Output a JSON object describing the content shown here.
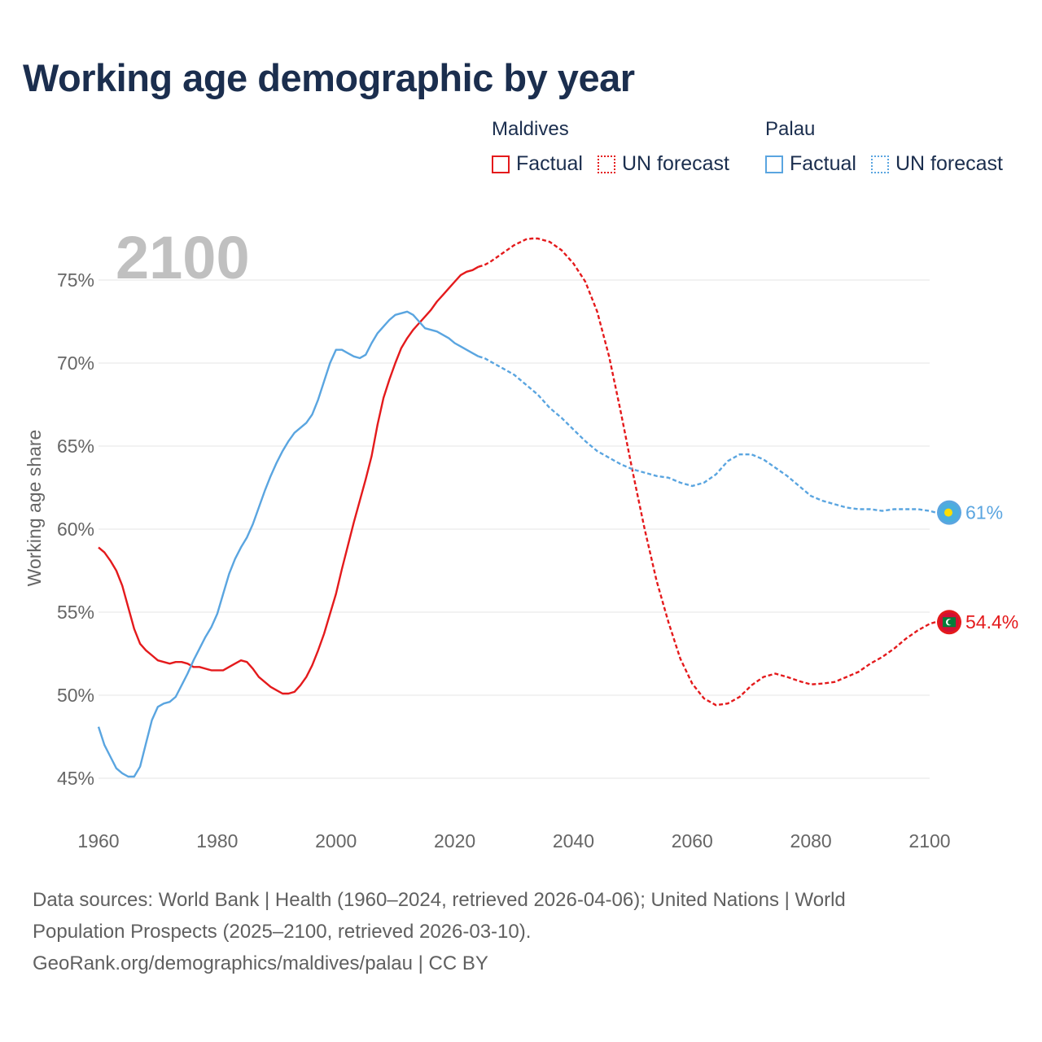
{
  "title": "Working age demographic by year",
  "legend": {
    "groups": [
      {
        "name": "Maldives",
        "factual_label": "Factual",
        "forecast_label": "UN forecast",
        "color": "#e41a1c"
      },
      {
        "name": "Palau",
        "factual_label": "Factual",
        "forecast_label": "UN forecast",
        "color": "#5aa5e0"
      }
    ]
  },
  "chart_data": {
    "type": "line",
    "title": "Working age demographic by year",
    "year_watermark": "2100",
    "xlabel": "",
    "ylabel": "Working age share",
    "xlim": [
      1960,
      2100
    ],
    "ylim": [
      43,
      78
    ],
    "x_ticks": [
      1960,
      1980,
      2000,
      2020,
      2040,
      2060,
      2080,
      2100
    ],
    "x_tick_labels": [
      "1960",
      "1980",
      "2000",
      "2020",
      "2040",
      "2060",
      "2080",
      "2100"
    ],
    "y_ticks": [
      45,
      50,
      55,
      60,
      65,
      70,
      75
    ],
    "y_tick_labels": [
      "45%",
      "50%",
      "55%",
      "60%",
      "65%",
      "70%",
      "75%"
    ],
    "grid": true,
    "factual_until": 2024,
    "series": [
      {
        "name": "Maldives",
        "color": "#e41a1c",
        "end_label": "54.4%",
        "flag": "maldives-flag",
        "points": [
          [
            1960,
            58.9
          ],
          [
            1961,
            58.6
          ],
          [
            1962,
            58.1
          ],
          [
            1963,
            57.5
          ],
          [
            1964,
            56.6
          ],
          [
            1965,
            55.3
          ],
          [
            1966,
            54.0
          ],
          [
            1967,
            53.1
          ],
          [
            1968,
            52.7
          ],
          [
            1969,
            52.4
          ],
          [
            1970,
            52.1
          ],
          [
            1971,
            52.0
          ],
          [
            1972,
            51.9
          ],
          [
            1973,
            52.0
          ],
          [
            1974,
            52.0
          ],
          [
            1975,
            51.9
          ],
          [
            1976,
            51.7
          ],
          [
            1977,
            51.7
          ],
          [
            1978,
            51.6
          ],
          [
            1979,
            51.5
          ],
          [
            1980,
            51.5
          ],
          [
            1981,
            51.5
          ],
          [
            1982,
            51.7
          ],
          [
            1983,
            51.9
          ],
          [
            1984,
            52.1
          ],
          [
            1985,
            52.0
          ],
          [
            1986,
            51.6
          ],
          [
            1987,
            51.1
          ],
          [
            1988,
            50.8
          ],
          [
            1989,
            50.5
          ],
          [
            1990,
            50.3
          ],
          [
            1991,
            50.1
          ],
          [
            1992,
            50.1
          ],
          [
            1993,
            50.2
          ],
          [
            1994,
            50.6
          ],
          [
            1995,
            51.1
          ],
          [
            1996,
            51.8
          ],
          [
            1997,
            52.7
          ],
          [
            1998,
            53.7
          ],
          [
            1999,
            54.9
          ],
          [
            2000,
            56.1
          ],
          [
            2001,
            57.6
          ],
          [
            2002,
            59.0
          ],
          [
            2003,
            60.4
          ],
          [
            2004,
            61.7
          ],
          [
            2005,
            63.0
          ],
          [
            2006,
            64.4
          ],
          [
            2007,
            66.3
          ],
          [
            2008,
            67.9
          ],
          [
            2009,
            69.0
          ],
          [
            2010,
            70.0
          ],
          [
            2011,
            70.9
          ],
          [
            2012,
            71.5
          ],
          [
            2013,
            72.0
          ],
          [
            2014,
            72.4
          ],
          [
            2015,
            72.8
          ],
          [
            2016,
            73.2
          ],
          [
            2017,
            73.7
          ],
          [
            2018,
            74.1
          ],
          [
            2019,
            74.5
          ],
          [
            2020,
            74.9
          ],
          [
            2021,
            75.3
          ],
          [
            2022,
            75.5
          ],
          [
            2023,
            75.6
          ],
          [
            2024,
            75.8
          ],
          [
            2025,
            75.9
          ],
          [
            2026,
            76.1
          ],
          [
            2028,
            76.6
          ],
          [
            2030,
            77.1
          ],
          [
            2032,
            77.45
          ],
          [
            2033,
            77.5
          ],
          [
            2034,
            77.5
          ],
          [
            2036,
            77.3
          ],
          [
            2038,
            76.8
          ],
          [
            2040,
            76.0
          ],
          [
            2042,
            74.9
          ],
          [
            2044,
            73.1
          ],
          [
            2046,
            70.4
          ],
          [
            2048,
            67.0
          ],
          [
            2050,
            63.4
          ],
          [
            2052,
            60.0
          ],
          [
            2054,
            56.9
          ],
          [
            2056,
            54.4
          ],
          [
            2058,
            52.2
          ],
          [
            2060,
            50.7
          ],
          [
            2062,
            49.8
          ],
          [
            2064,
            49.4
          ],
          [
            2066,
            49.5
          ],
          [
            2068,
            49.9
          ],
          [
            2070,
            50.6
          ],
          [
            2072,
            51.1
          ],
          [
            2074,
            51.3
          ],
          [
            2076,
            51.1
          ],
          [
            2078,
            50.85
          ],
          [
            2080,
            50.65
          ],
          [
            2082,
            50.7
          ],
          [
            2084,
            50.8
          ],
          [
            2086,
            51.1
          ],
          [
            2088,
            51.4
          ],
          [
            2090,
            51.9
          ],
          [
            2092,
            52.3
          ],
          [
            2094,
            52.8
          ],
          [
            2096,
            53.4
          ],
          [
            2098,
            53.9
          ],
          [
            2100,
            54.3
          ],
          [
            2101,
            54.4
          ]
        ]
      },
      {
        "name": "Palau",
        "color": "#5aa5e0",
        "end_label": "61%",
        "flag": "palau-flag",
        "points": [
          [
            1960,
            48.1
          ],
          [
            1961,
            47.0
          ],
          [
            1962,
            46.3
          ],
          [
            1963,
            45.6
          ],
          [
            1964,
            45.3
          ],
          [
            1965,
            45.1
          ],
          [
            1966,
            45.1
          ],
          [
            1967,
            45.7
          ],
          [
            1968,
            47.1
          ],
          [
            1969,
            48.5
          ],
          [
            1970,
            49.3
          ],
          [
            1971,
            49.5
          ],
          [
            1972,
            49.6
          ],
          [
            1973,
            49.9
          ],
          [
            1974,
            50.6
          ],
          [
            1975,
            51.3
          ],
          [
            1976,
            52.1
          ],
          [
            1977,
            52.8
          ],
          [
            1978,
            53.5
          ],
          [
            1979,
            54.1
          ],
          [
            1980,
            54.9
          ],
          [
            1981,
            56.1
          ],
          [
            1982,
            57.3
          ],
          [
            1983,
            58.2
          ],
          [
            1984,
            58.9
          ],
          [
            1985,
            59.5
          ],
          [
            1986,
            60.3
          ],
          [
            1987,
            61.3
          ],
          [
            1988,
            62.3
          ],
          [
            1989,
            63.2
          ],
          [
            1990,
            64.0
          ],
          [
            1991,
            64.7
          ],
          [
            1992,
            65.3
          ],
          [
            1993,
            65.8
          ],
          [
            1994,
            66.1
          ],
          [
            1995,
            66.4
          ],
          [
            1996,
            66.9
          ],
          [
            1997,
            67.8
          ],
          [
            1998,
            68.9
          ],
          [
            1999,
            70.0
          ],
          [
            2000,
            70.8
          ],
          [
            2001,
            70.8
          ],
          [
            2002,
            70.6
          ],
          [
            2003,
            70.4
          ],
          [
            2004,
            70.3
          ],
          [
            2005,
            70.5
          ],
          [
            2006,
            71.2
          ],
          [
            2007,
            71.8
          ],
          [
            2008,
            72.2
          ],
          [
            2009,
            72.6
          ],
          [
            2010,
            72.9
          ],
          [
            2011,
            73.0
          ],
          [
            2012,
            73.1
          ],
          [
            2013,
            72.9
          ],
          [
            2014,
            72.5
          ],
          [
            2015,
            72.1
          ],
          [
            2016,
            72.0
          ],
          [
            2017,
            71.9
          ],
          [
            2018,
            71.7
          ],
          [
            2019,
            71.5
          ],
          [
            2020,
            71.2
          ],
          [
            2021,
            71.0
          ],
          [
            2022,
            70.8
          ],
          [
            2023,
            70.6
          ],
          [
            2024,
            70.4
          ],
          [
            2025,
            70.3
          ],
          [
            2026,
            70.1
          ],
          [
            2028,
            69.7
          ],
          [
            2030,
            69.3
          ],
          [
            2032,
            68.7
          ],
          [
            2034,
            68.1
          ],
          [
            2036,
            67.3
          ],
          [
            2038,
            66.7
          ],
          [
            2040,
            66.0
          ],
          [
            2042,
            65.3
          ],
          [
            2044,
            64.7
          ],
          [
            2046,
            64.3
          ],
          [
            2048,
            63.9
          ],
          [
            2050,
            63.6
          ],
          [
            2052,
            63.4
          ],
          [
            2054,
            63.2
          ],
          [
            2056,
            63.1
          ],
          [
            2058,
            62.8
          ],
          [
            2060,
            62.6
          ],
          [
            2062,
            62.8
          ],
          [
            2064,
            63.3
          ],
          [
            2066,
            64.1
          ],
          [
            2068,
            64.5
          ],
          [
            2070,
            64.5
          ],
          [
            2072,
            64.2
          ],
          [
            2074,
            63.7
          ],
          [
            2076,
            63.2
          ],
          [
            2078,
            62.6
          ],
          [
            2080,
            62.0
          ],
          [
            2082,
            61.7
          ],
          [
            2084,
            61.5
          ],
          [
            2086,
            61.3
          ],
          [
            2088,
            61.2
          ],
          [
            2090,
            61.2
          ],
          [
            2092,
            61.1
          ],
          [
            2094,
            61.2
          ],
          [
            2096,
            61.2
          ],
          [
            2098,
            61.2
          ],
          [
            2100,
            61.1
          ],
          [
            2101,
            61.0
          ]
        ]
      }
    ]
  },
  "source": {
    "line1": "Data sources: World Bank | Health (1960–2024, retrieved 2026-04-06); United Nations | World",
    "line2": "Population Prospects (2025–2100, retrieved 2026-03-10).",
    "line3": "GeoRank.org/demographics/maldives/palau | CC BY"
  }
}
